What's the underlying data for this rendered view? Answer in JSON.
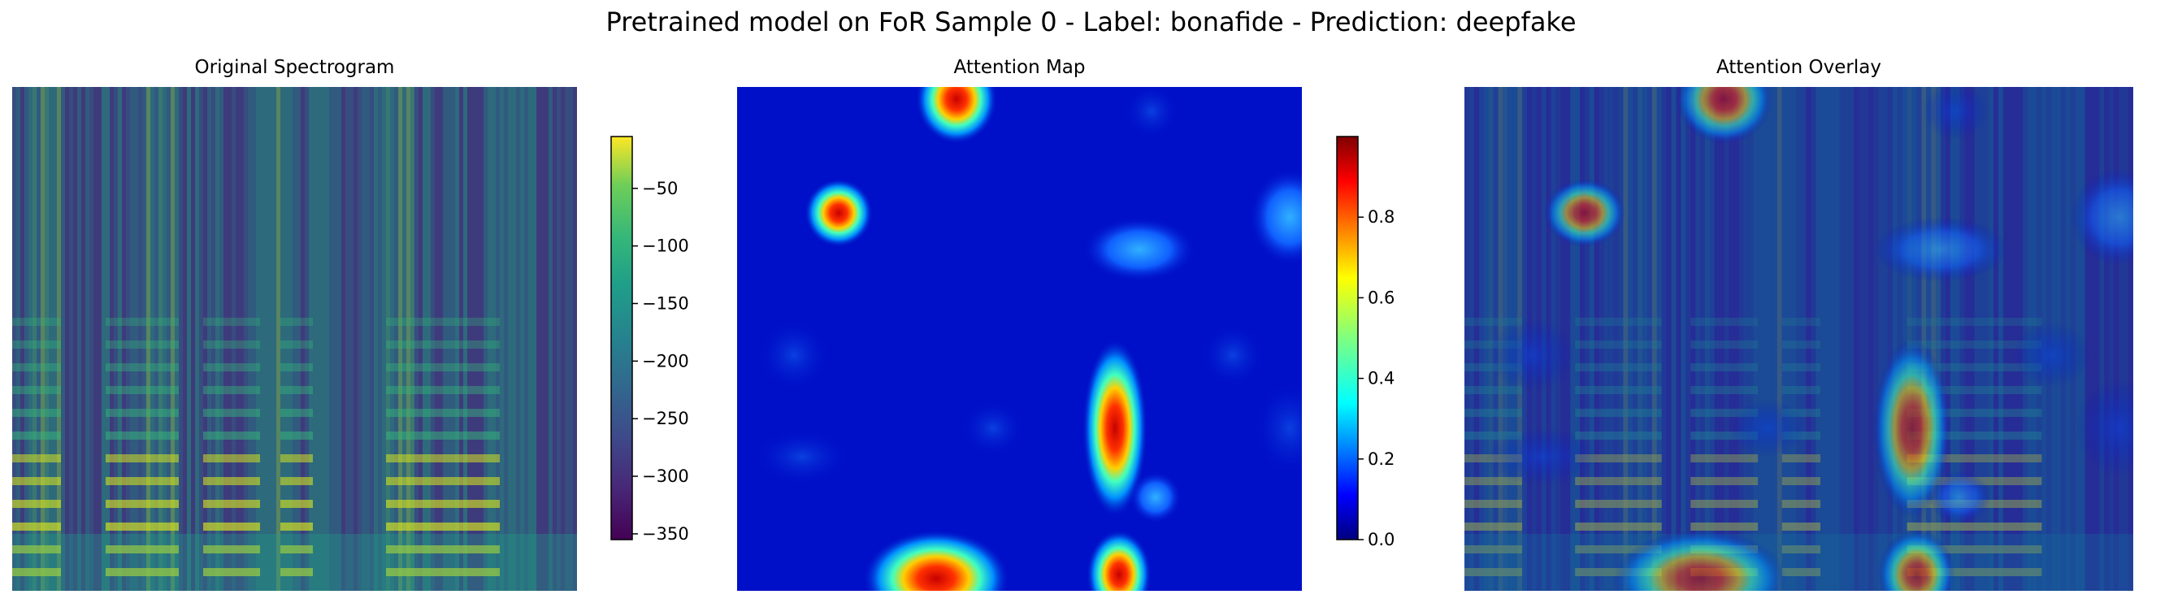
{
  "suptitle": "Pretrained model on FoR Sample 0 - Label: bonafide - Prediction: deepfake",
  "panels": [
    {
      "title": "Original Spectrogram"
    },
    {
      "title": "Attention Map"
    },
    {
      "title": "Attention Overlay"
    }
  ],
  "chart_data": [
    {
      "type": "heatmap",
      "title": "Original Spectrogram",
      "colormap": "viridis",
      "colorbar": {
        "range": [
          -355,
          -5
        ],
        "ticks": [
          -50,
          -100,
          -150,
          -200,
          -250,
          -300,
          -350
        ],
        "tick_labels": [
          "−50",
          "−100",
          "−150",
          "−200",
          "−250",
          "−300",
          "−350"
        ]
      },
      "axes": "off"
    },
    {
      "type": "heatmap",
      "title": "Attention Map",
      "colormap": "jet",
      "colorbar": {
        "range": [
          0,
          1
        ],
        "ticks": [
          0.0,
          0.2,
          0.4,
          0.6,
          0.8
        ],
        "tick_labels": [
          "0.0",
          "0.2",
          "0.4",
          "0.6",
          "0.8"
        ]
      },
      "axes": "off"
    },
    {
      "type": "heatmap",
      "title": "Attention Overlay",
      "colormap": "viridis + jet overlay",
      "axes": "off"
    }
  ],
  "colors": {
    "background": "#ffffff",
    "jet_low": "#00007f",
    "jet_high": "#7f0000",
    "viridis_low": "#440154",
    "viridis_high": "#fde725"
  }
}
